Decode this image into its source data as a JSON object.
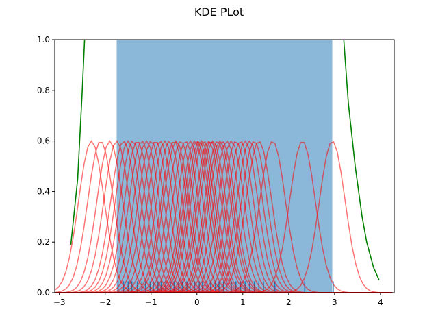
{
  "chart_data": {
    "type": "line",
    "title": "KDE PLot",
    "xlabel": "",
    "ylabel": "",
    "xlim": [
      -3.1,
      4.3
    ],
    "ylim": [
      0,
      1.0
    ],
    "xticks": [
      "−3",
      "−2",
      "−1",
      "0",
      "1",
      "2",
      "3",
      "4"
    ],
    "xtick_values": [
      -3,
      -2,
      -1,
      0,
      1,
      2,
      3,
      4
    ],
    "yticks": [
      "0.0",
      "0.2",
      "0.4",
      "0.6",
      "0.8",
      "1.0"
    ],
    "ytick_values": [
      0.0,
      0.2,
      0.4,
      0.6,
      0.8,
      1.0
    ],
    "grid": false,
    "legend": "none",
    "shaded_region": {
      "x_start": -1.75,
      "x_end": 2.95,
      "color": "#8bb8d9"
    },
    "kernel_peak": 0.6,
    "kernel_sigma": 0.28,
    "kernel_centers": [
      -2.3,
      -2.1,
      -1.9,
      -1.75,
      -1.6,
      -1.5,
      -1.4,
      -1.3,
      -1.2,
      -1.1,
      -1.0,
      -0.9,
      -0.8,
      -0.7,
      -0.6,
      -0.5,
      -0.45,
      -0.35,
      -0.25,
      -0.15,
      -0.05,
      0.0,
      0.05,
      0.1,
      0.15,
      0.25,
      0.3,
      0.35,
      0.45,
      0.5,
      0.55,
      0.65,
      0.75,
      0.85,
      0.95,
      1.05,
      1.15,
      1.25,
      1.35,
      1.65,
      2.3,
      2.95
    ],
    "kernel_color": "#ff0000",
    "envelope": {
      "color": "#008000",
      "left": [
        [
          -2.75,
          0.19
        ],
        [
          -2.6,
          0.45
        ],
        [
          -2.5,
          0.8
        ],
        [
          -2.45,
          1.0
        ]
      ],
      "right": [
        [
          3.2,
          1.0
        ],
        [
          3.3,
          0.75
        ],
        [
          3.45,
          0.5
        ],
        [
          3.6,
          0.3
        ],
        [
          3.7,
          0.2
        ],
        [
          3.85,
          0.1
        ],
        [
          3.97,
          0.05
        ]
      ]
    },
    "rug": {
      "color": "#1f77b4",
      "values": [
        -1.72,
        -1.6,
        -1.5,
        -1.42,
        -1.3,
        -1.2,
        -1.12,
        -1.02,
        -0.95,
        -0.85,
        -0.78,
        -0.68,
        -0.58,
        -0.5,
        -0.4,
        -0.32,
        -0.22,
        -0.15,
        -0.05,
        0.05,
        0.12,
        0.22,
        0.3,
        0.4,
        0.48,
        0.58,
        0.65,
        0.75,
        0.85,
        0.95,
        1.05,
        1.15,
        1.25,
        1.35,
        1.45,
        1.7,
        2.35,
        2.97
      ]
    }
  }
}
